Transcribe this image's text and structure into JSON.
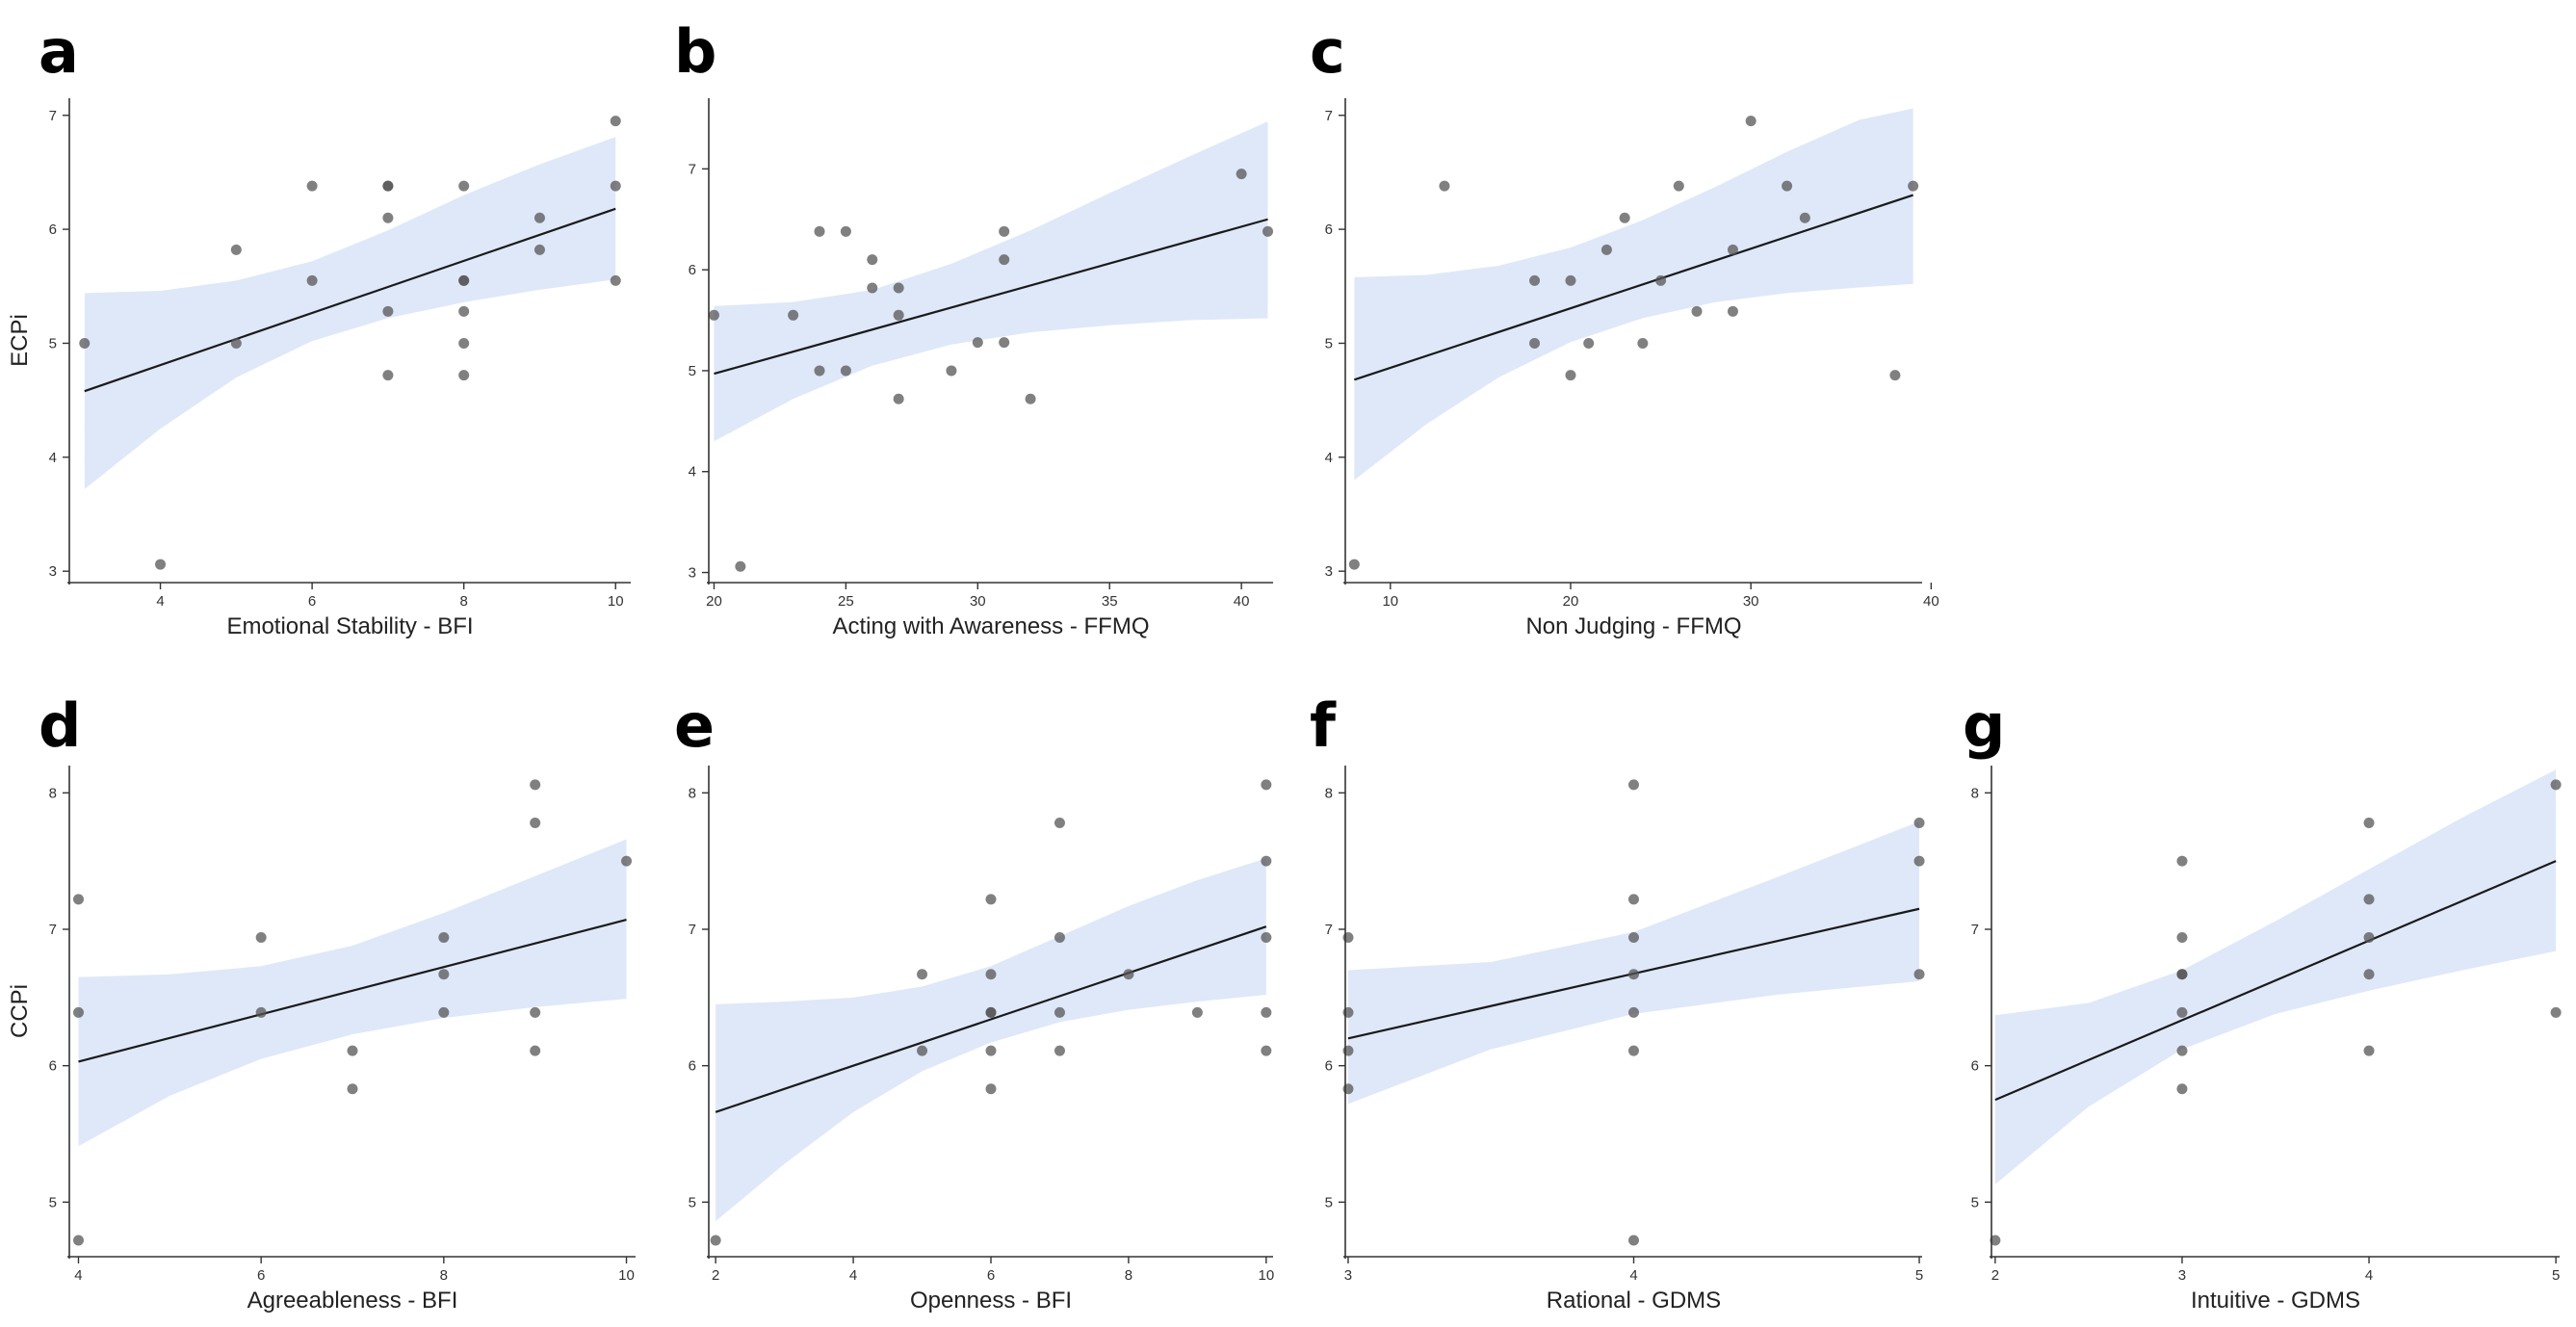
{
  "figure": {
    "colors": {
      "ci_band": "#c5d5f4",
      "fit_line": "#1a1a1a",
      "points": "#555555",
      "axis": "#333333"
    }
  },
  "chart_data": [
    {
      "panel": "a",
      "type": "scatter",
      "xlabel": "Emotional Stability - BFI",
      "ylabel": "ECPi",
      "xlim": [
        2.8,
        10.2
      ],
      "ylim": [
        2.9,
        7.15
      ],
      "xticks": [
        4,
        6,
        8,
        10
      ],
      "yticks": [
        3,
        4,
        5,
        6,
        7
      ],
      "x": [
        3,
        4,
        5,
        5,
        6,
        6,
        7,
        7,
        7,
        7,
        7,
        8,
        8,
        8,
        8,
        8,
        8,
        9,
        9,
        10,
        10,
        10
      ],
      "y": [
        5.0,
        3.06,
        5.82,
        5.0,
        6.38,
        5.55,
        6.38,
        6.1,
        5.28,
        4.72,
        6.38,
        6.38,
        5.55,
        5.28,
        5.0,
        4.72,
        5.55,
        6.1,
        5.82,
        6.95,
        6.38,
        5.55
      ],
      "fit": {
        "x": [
          3,
          10
        ],
        "y": [
          4.58,
          6.18
        ]
      },
      "ci": {
        "x": [
          3,
          4,
          5,
          6,
          7,
          8,
          9,
          10
        ],
        "lower": [
          3.72,
          4.25,
          4.7,
          5.02,
          5.22,
          5.36,
          5.47,
          5.56
        ],
        "upper": [
          5.44,
          5.46,
          5.55,
          5.72,
          5.99,
          6.3,
          6.57,
          6.81
        ]
      }
    },
    {
      "panel": "b",
      "type": "scatter",
      "xlabel": "Acting with Awareness - FFMQ",
      "ylabel": "",
      "xlim": [
        19.8,
        41.2
      ],
      "ylim": [
        2.9,
        7.7
      ],
      "xticks": [
        20,
        25,
        30,
        35,
        40
      ],
      "yticks": [
        3,
        4,
        5,
        6,
        7
      ],
      "x": [
        20,
        21,
        23,
        24,
        24,
        25,
        25,
        26,
        26,
        27,
        27,
        27,
        29,
        30,
        31,
        31,
        31,
        32,
        40,
        41
      ],
      "y": [
        5.55,
        3.06,
        5.55,
        6.38,
        5.0,
        6.38,
        5.0,
        6.1,
        5.82,
        5.82,
        5.55,
        4.72,
        5.0,
        5.28,
        6.38,
        6.1,
        5.28,
        4.72,
        6.95,
        6.38
      ],
      "fit": {
        "x": [
          20,
          41
        ],
        "y": [
          4.97,
          6.5
        ]
      },
      "ci": {
        "x": [
          20,
          23,
          26,
          29,
          32,
          35,
          38,
          41
        ],
        "lower": [
          4.3,
          4.72,
          5.05,
          5.26,
          5.38,
          5.45,
          5.5,
          5.52
        ],
        "upper": [
          5.64,
          5.68,
          5.8,
          6.06,
          6.39,
          6.76,
          7.12,
          7.47
        ]
      }
    },
    {
      "panel": "c",
      "type": "scatter",
      "xlabel": "Non Judging - FFMQ",
      "ylabel": "",
      "xlim": [
        7.5,
        39.5
      ],
      "ylim": [
        2.9,
        7.15
      ],
      "xticks": [
        10,
        20,
        30,
        40
      ],
      "yticks": [
        3,
        4,
        5,
        6,
        7
      ],
      "x": [
        8,
        13,
        18,
        18,
        20,
        20,
        21,
        22,
        23,
        24,
        25,
        26,
        27,
        29,
        29,
        30,
        32,
        33,
        38,
        39
      ],
      "y": [
        3.06,
        6.38,
        5.55,
        5.0,
        5.55,
        4.72,
        5.0,
        5.82,
        6.1,
        5.0,
        5.55,
        6.38,
        5.28,
        5.82,
        5.28,
        6.95,
        6.38,
        6.1,
        4.72,
        6.38
      ],
      "fit": {
        "x": [
          8,
          39
        ],
        "y": [
          4.68,
          6.3
        ]
      },
      "ci": {
        "x": [
          8,
          12,
          16,
          20,
          24,
          28,
          32,
          36,
          39
        ],
        "lower": [
          3.8,
          4.29,
          4.7,
          5.01,
          5.22,
          5.36,
          5.44,
          5.49,
          5.52
        ],
        "upper": [
          5.58,
          5.6,
          5.68,
          5.84,
          6.08,
          6.37,
          6.68,
          6.96,
          7.06
        ]
      }
    },
    {
      "panel": "d",
      "type": "scatter",
      "xlabel": "Agreeableness - BFI",
      "ylabel": "CCPi",
      "xlim": [
        3.9,
        10.1
      ],
      "ylim": [
        4.6,
        8.2
      ],
      "xticks": [
        4,
        6,
        8,
        10
      ],
      "yticks": [
        5,
        6,
        7,
        8
      ],
      "x": [
        4,
        4,
        4,
        6,
        6,
        7,
        7,
        8,
        8,
        8,
        9,
        9,
        9,
        9,
        10
      ],
      "y": [
        7.22,
        6.39,
        4.72,
        6.94,
        6.39,
        6.11,
        5.83,
        6.94,
        6.67,
        6.39,
        8.06,
        7.78,
        6.39,
        6.11,
        7.5
      ],
      "fit": {
        "x": [
          4,
          10
        ],
        "y": [
          6.03,
          7.07
        ]
      },
      "ci": {
        "x": [
          4,
          5,
          6,
          7,
          8,
          9,
          10
        ],
        "lower": [
          5.41,
          5.78,
          6.05,
          6.23,
          6.35,
          6.43,
          6.49
        ],
        "upper": [
          6.65,
          6.67,
          6.73,
          6.88,
          7.12,
          7.39,
          7.66
        ]
      }
    },
    {
      "panel": "e",
      "type": "scatter",
      "xlabel": "Openness - BFI",
      "ylabel": "",
      "xlim": [
        1.9,
        10.1
      ],
      "ylim": [
        4.6,
        8.2
      ],
      "xticks": [
        2,
        4,
        6,
        8,
        10
      ],
      "yticks": [
        5,
        6,
        7,
        8
      ],
      "x": [
        2,
        5,
        5,
        6,
        6,
        6,
        6,
        6,
        6,
        7,
        7,
        7,
        7,
        8,
        9,
        10,
        10,
        10,
        10,
        10
      ],
      "y": [
        4.72,
        6.67,
        6.11,
        7.22,
        6.67,
        6.39,
        6.39,
        6.11,
        5.83,
        7.78,
        6.94,
        6.39,
        6.11,
        6.67,
        6.39,
        8.06,
        7.5,
        6.94,
        6.39,
        6.11
      ],
      "fit": {
        "x": [
          2,
          10
        ],
        "y": [
          5.66,
          7.02
        ]
      },
      "ci": {
        "x": [
          2,
          3,
          4,
          5,
          6,
          7,
          8,
          9,
          10
        ],
        "lower": [
          4.86,
          5.28,
          5.66,
          5.96,
          6.17,
          6.32,
          6.41,
          6.47,
          6.52
        ],
        "upper": [
          6.45,
          6.47,
          6.5,
          6.58,
          6.73,
          6.95,
          7.17,
          7.36,
          7.52
        ]
      }
    },
    {
      "panel": "f",
      "type": "scatter",
      "xlabel": "Rational - GDMS",
      "ylabel": "",
      "xlim": [
        2.99,
        5.01
      ],
      "ylim": [
        4.6,
        8.2
      ],
      "xticks": [
        3,
        4,
        5
      ],
      "yticks": [
        5,
        6,
        7,
        8
      ],
      "x": [
        3,
        3,
        3,
        3,
        4,
        4,
        4,
        4,
        4,
        4,
        4,
        5,
        5,
        5
      ],
      "y": [
        6.94,
        6.39,
        6.11,
        5.83,
        8.06,
        7.22,
        6.94,
        6.67,
        6.39,
        6.11,
        4.72,
        7.78,
        7.5,
        6.67
      ],
      "fit": {
        "x": [
          3,
          5
        ],
        "y": [
          6.2,
          7.15
        ]
      },
      "ci": {
        "x": [
          3,
          3.5,
          4,
          4.5,
          5
        ],
        "lower": [
          5.72,
          6.12,
          6.38,
          6.52,
          6.62
        ],
        "upper": [
          6.7,
          6.76,
          6.98,
          7.38,
          7.79
        ]
      }
    },
    {
      "panel": "g",
      "type": "scatter",
      "xlabel": "Intuitive - GDMS",
      "ylabel": "",
      "xlim": [
        1.98,
        5.02
      ],
      "ylim": [
        4.6,
        8.2
      ],
      "xticks": [
        2,
        3,
        4,
        5
      ],
      "yticks": [
        5,
        6,
        7,
        8
      ],
      "x": [
        2,
        3,
        3,
        3,
        3,
        3,
        3,
        3,
        4,
        4,
        4,
        4,
        4,
        5,
        5
      ],
      "y": [
        4.72,
        7.5,
        6.94,
        6.67,
        6.67,
        6.39,
        6.11,
        5.83,
        7.78,
        7.22,
        6.94,
        6.67,
        6.11,
        8.06,
        6.39
      ],
      "fit": {
        "x": [
          2,
          5
        ],
        "y": [
          5.75,
          7.5
        ]
      },
      "ci": {
        "x": [
          2,
          2.5,
          3,
          3.5,
          4,
          4.5,
          5
        ],
        "lower": [
          5.13,
          5.7,
          6.12,
          6.38,
          6.55,
          6.7,
          6.84
        ],
        "upper": [
          6.37,
          6.46,
          6.7,
          7.06,
          7.44,
          7.82,
          8.17
        ]
      }
    }
  ]
}
